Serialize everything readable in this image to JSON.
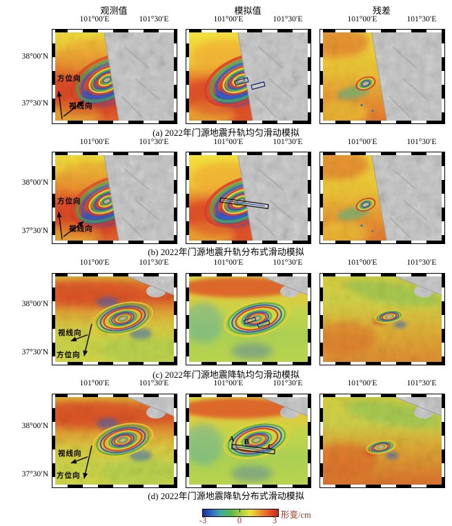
{
  "figure": {
    "columns": [
      "观测值",
      "模拟值",
      "残差"
    ],
    "lon_ticks": [
      "101°00′E",
      "101°30′E"
    ],
    "lat_ticks": [
      "38°00′N",
      "37°30′N"
    ],
    "rows": [
      {
        "label": "a",
        "caption": "(a) 2022年门源地震升轨均匀滑动模拟",
        "direction_labels": {
          "azimuth": "方位向",
          "los": "视线向"
        }
      },
      {
        "label": "b",
        "caption": "(b) 2022年门源地震升轨分布式滑动模拟",
        "direction_labels": {
          "azimuth": "方位向",
          "los": "视线向"
        }
      },
      {
        "label": "c",
        "caption": "(c) 2022年门源地震降轨均匀滑动模拟",
        "direction_labels": {
          "azimuth": "方位向",
          "los": "视线向"
        }
      },
      {
        "label": "d",
        "caption": "(d) 2022年门源地震降轨分布式滑动模拟",
        "direction_labels": {
          "azimuth": "方位向",
          "los": "视线向"
        },
        "fault_point_labels": [
          "A",
          "B",
          "C"
        ]
      }
    ],
    "colorbar": {
      "title": "形变/cm",
      "ticks": [
        "-3",
        "0",
        "3"
      ],
      "colors": [
        "#1c2fa0",
        "#2f6ec6",
        "#3fae9e",
        "#59b84a",
        "#a7cc3f",
        "#e8e23a",
        "#ee9c2e",
        "#e4572a",
        "#c9281f"
      ],
      "label_color": "#9b3322"
    }
  }
}
